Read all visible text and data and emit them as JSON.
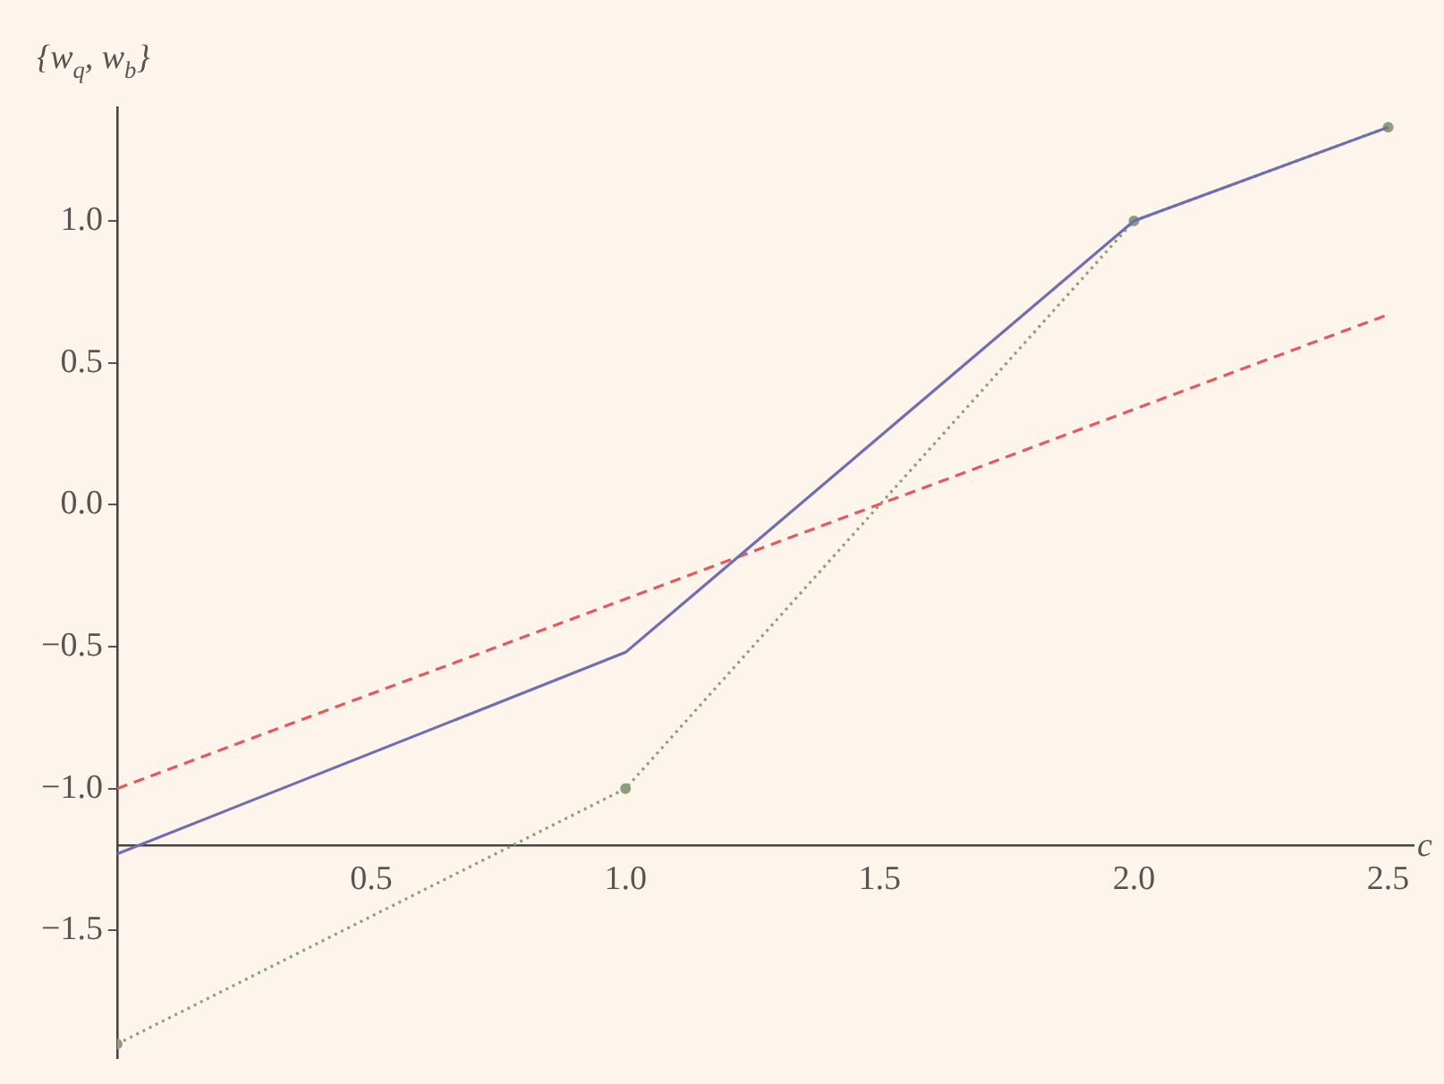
{
  "chart_data": {
    "type": "line",
    "ylabel": "{w$_{q}$, w$_{b}$}",
    "xlabel": "c",
    "x": [
      0,
      1,
      2,
      2.5
    ],
    "series": [
      {
        "color": "#6e6eb4",
        "values": [
          -1.23,
          -0.52,
          1.0,
          1.33
        ],
        "line_style": "solid",
        "marker": "none"
      },
      {
        "color": "#8f9e78",
        "values": [
          -1.9,
          -1.0,
          1.0,
          1.33
        ],
        "line_style": "dotted",
        "marker": "circle"
      },
      {
        "color": "#e8585a",
        "x": [
          0,
          2.5
        ],
        "values": [
          -1.0,
          0.67
        ],
        "line_style": "dashed",
        "marker": "none"
      }
    ],
    "xlim": [
      0,
      2.55
    ],
    "ylim": [
      -1.95,
      1.4
    ],
    "xticks": [
      0.5,
      {
        "value": 1,
        "label": "1.0"
      },
      1.5,
      {
        "value": 2,
        "label": "2.0"
      },
      2.5
    ],
    "yticks": [
      {
        "value": -1.5,
        "label": "−1.5"
      },
      {
        "value": -1,
        "label": "−1.0"
      },
      {
        "value": -0.5,
        "label": "−0.5"
      },
      {
        "value": 0,
        "label": "0.0"
      },
      0.5,
      {
        "value": 1,
        "label": "1.0"
      }
    ],
    "grid": false,
    "legend": false
  }
}
